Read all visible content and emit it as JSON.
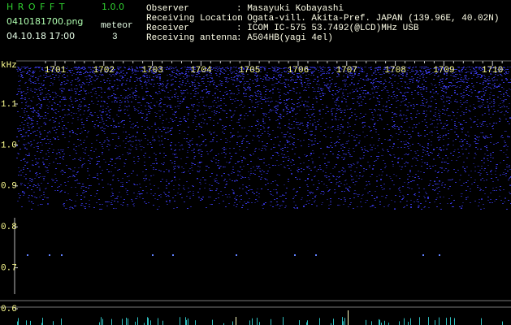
{
  "header": {
    "title": "H R O F F T",
    "version": "1.0.0",
    "file": "0410181700.png",
    "datetime": "04.10.18 17:00",
    "meteor_label": "meteor",
    "meteor_count": "3"
  },
  "info": [
    {
      "label": "Observer",
      "value": ": Masayuki Kobayashi"
    },
    {
      "label": "Receiving Location",
      "value": ": Ogata-vill. Akita-Pref. JAPAN (139.96E, 40.02N)"
    },
    {
      "label": "Receiver",
      "value": ": ICOM IC-575 53.7492(@LCD)MHz USB"
    },
    {
      "label": "Receiving antenna",
      "value": ": A504HB(yagi 4el)"
    }
  ],
  "time_axis": [
    "1701",
    "1702",
    "1703",
    "1704",
    "1705",
    "1706",
    "1707",
    "1708",
    "1709",
    "1710"
  ],
  "freq_axis": {
    "unit": "kHz",
    "labels": [
      "1.1",
      "1.0",
      "0.9",
      "0.8",
      "0.7",
      "0.6"
    ]
  }
}
